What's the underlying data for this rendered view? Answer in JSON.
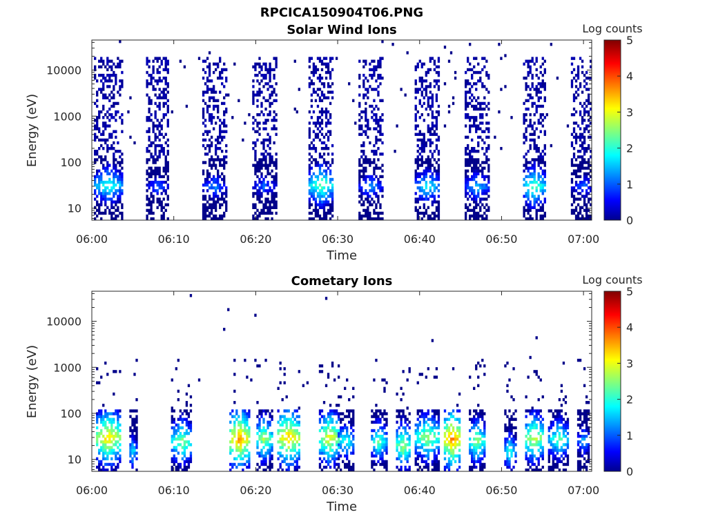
{
  "figure": {
    "suptitle": "RPCICA150904T06.PNG"
  },
  "colormap": "jet",
  "chart_data": [
    {
      "type": "heatmap",
      "title": "Solar Wind Ions",
      "xlabel": "Time",
      "ylabel": "Energy (eV)",
      "y_scale": "log",
      "ylim": [
        5.5,
        45000
      ],
      "xlim": [
        "06:00",
        "07:01"
      ],
      "x_ticks": [
        "06:00",
        "06:10",
        "06:20",
        "06:30",
        "06:40",
        "06:50",
        "07:00"
      ],
      "y_ticks": [
        10,
        100,
        1000,
        10000
      ],
      "y_tick_labels": [
        "10",
        "100",
        "1000",
        "10000"
      ],
      "colorbar": {
        "label": "Log counts",
        "range": [
          0,
          5
        ],
        "ticks": [
          "0",
          "1",
          "2",
          "3",
          "4",
          "5"
        ]
      },
      "grid": false,
      "series": [
        {
          "center": "06:02",
          "width_min": 3.5,
          "low_peak_e": 32,
          "low_peak_value": 2.0,
          "high_e_max": 20000
        },
        {
          "center": "06:08",
          "width_min": 3.0,
          "low_peak_e": 30,
          "low_peak_value": 1.0,
          "high_e_max": 20000
        },
        {
          "center": "06:15",
          "width_min": 3.0,
          "low_peak_e": 30,
          "low_peak_value": 1.2,
          "high_e_max": 20000
        },
        {
          "center": "06:21",
          "width_min": 3.0,
          "low_peak_e": 30,
          "low_peak_value": 1.0,
          "high_e_max": 20000
        },
        {
          "center": "06:28",
          "width_min": 3.0,
          "low_peak_e": 32,
          "low_peak_value": 2.3,
          "high_e_max": 20000
        },
        {
          "center": "06:34",
          "width_min": 3.0,
          "low_peak_e": 30,
          "low_peak_value": 1.3,
          "high_e_max": 20000
        },
        {
          "center": "06:41",
          "width_min": 3.0,
          "low_peak_e": 30,
          "low_peak_value": 1.8,
          "high_e_max": 20000
        },
        {
          "center": "06:47",
          "width_min": 3.0,
          "low_peak_e": 30,
          "low_peak_value": 1.5,
          "high_e_max": 20000
        },
        {
          "center": "06:54",
          "width_min": 3.0,
          "low_peak_e": 30,
          "low_peak_value": 2.2,
          "high_e_max": 20000
        },
        {
          "center": "07:00",
          "width_min": 3.0,
          "low_peak_e": 30,
          "low_peak_value": 1.0,
          "high_e_max": 20000
        }
      ]
    },
    {
      "type": "heatmap",
      "title": "Cometary Ions",
      "xlabel": "Time",
      "ylabel": "Energy (eV)",
      "y_scale": "log",
      "ylim": [
        5.5,
        45000
      ],
      "xlim": [
        "06:00",
        "07:01"
      ],
      "x_ticks": [
        "06:00",
        "06:10",
        "06:20",
        "06:30",
        "06:40",
        "06:50",
        "07:00"
      ],
      "y_ticks": [
        10,
        100,
        1000,
        10000
      ],
      "y_tick_labels": [
        "10",
        "100",
        "1000",
        "10000"
      ],
      "colorbar": {
        "label": "Log counts",
        "range": [
          0,
          5
        ],
        "ticks": [
          "0",
          "1",
          "2",
          "3",
          "4",
          "5"
        ]
      },
      "grid": false,
      "series": [
        {
          "center": "06:02",
          "width_min": 3.0,
          "low_peak_e": 30,
          "low_peak_value": 3.2
        },
        {
          "center": "06:05",
          "width_min": 1.0,
          "low_peak_e": 15,
          "low_peak_value": 1.8
        },
        {
          "center": "06:11",
          "width_min": 2.5,
          "low_peak_e": 25,
          "low_peak_value": 2.5
        },
        {
          "center": "06:18",
          "width_min": 2.5,
          "low_peak_e": 28,
          "low_peak_value": 3.5
        },
        {
          "center": "06:21",
          "width_min": 2.0,
          "low_peak_e": 28,
          "low_peak_value": 2.6
        },
        {
          "center": "06:24",
          "width_min": 3.0,
          "low_peak_e": 30,
          "low_peak_value": 3.3
        },
        {
          "center": "06:29",
          "width_min": 2.5,
          "low_peak_e": 30,
          "low_peak_value": 3.0
        },
        {
          "center": "06:31",
          "width_min": 2.0,
          "low_peak_e": 25,
          "low_peak_value": 2.0
        },
        {
          "center": "06:35",
          "width_min": 2.0,
          "low_peak_e": 25,
          "low_peak_value": 2.2
        },
        {
          "center": "06:38",
          "width_min": 2.0,
          "low_peak_e": 20,
          "low_peak_value": 2.6
        },
        {
          "center": "06:41",
          "width_min": 3.0,
          "low_peak_e": 30,
          "low_peak_value": 2.6
        },
        {
          "center": "06:44",
          "width_min": 2.0,
          "low_peak_e": 28,
          "low_peak_value": 3.6
        },
        {
          "center": "06:47",
          "width_min": 2.0,
          "low_peak_e": 25,
          "low_peak_value": 2.5
        },
        {
          "center": "06:51",
          "width_min": 1.5,
          "low_peak_e": 15,
          "low_peak_value": 2.0
        },
        {
          "center": "06:54",
          "width_min": 2.5,
          "low_peak_e": 30,
          "low_peak_value": 2.8
        },
        {
          "center": "06:57",
          "width_min": 2.5,
          "low_peak_e": 28,
          "low_peak_value": 2.2
        },
        {
          "center": "07:00",
          "width_min": 1.5,
          "low_peak_e": 25,
          "low_peak_value": 1.5
        }
      ]
    }
  ]
}
